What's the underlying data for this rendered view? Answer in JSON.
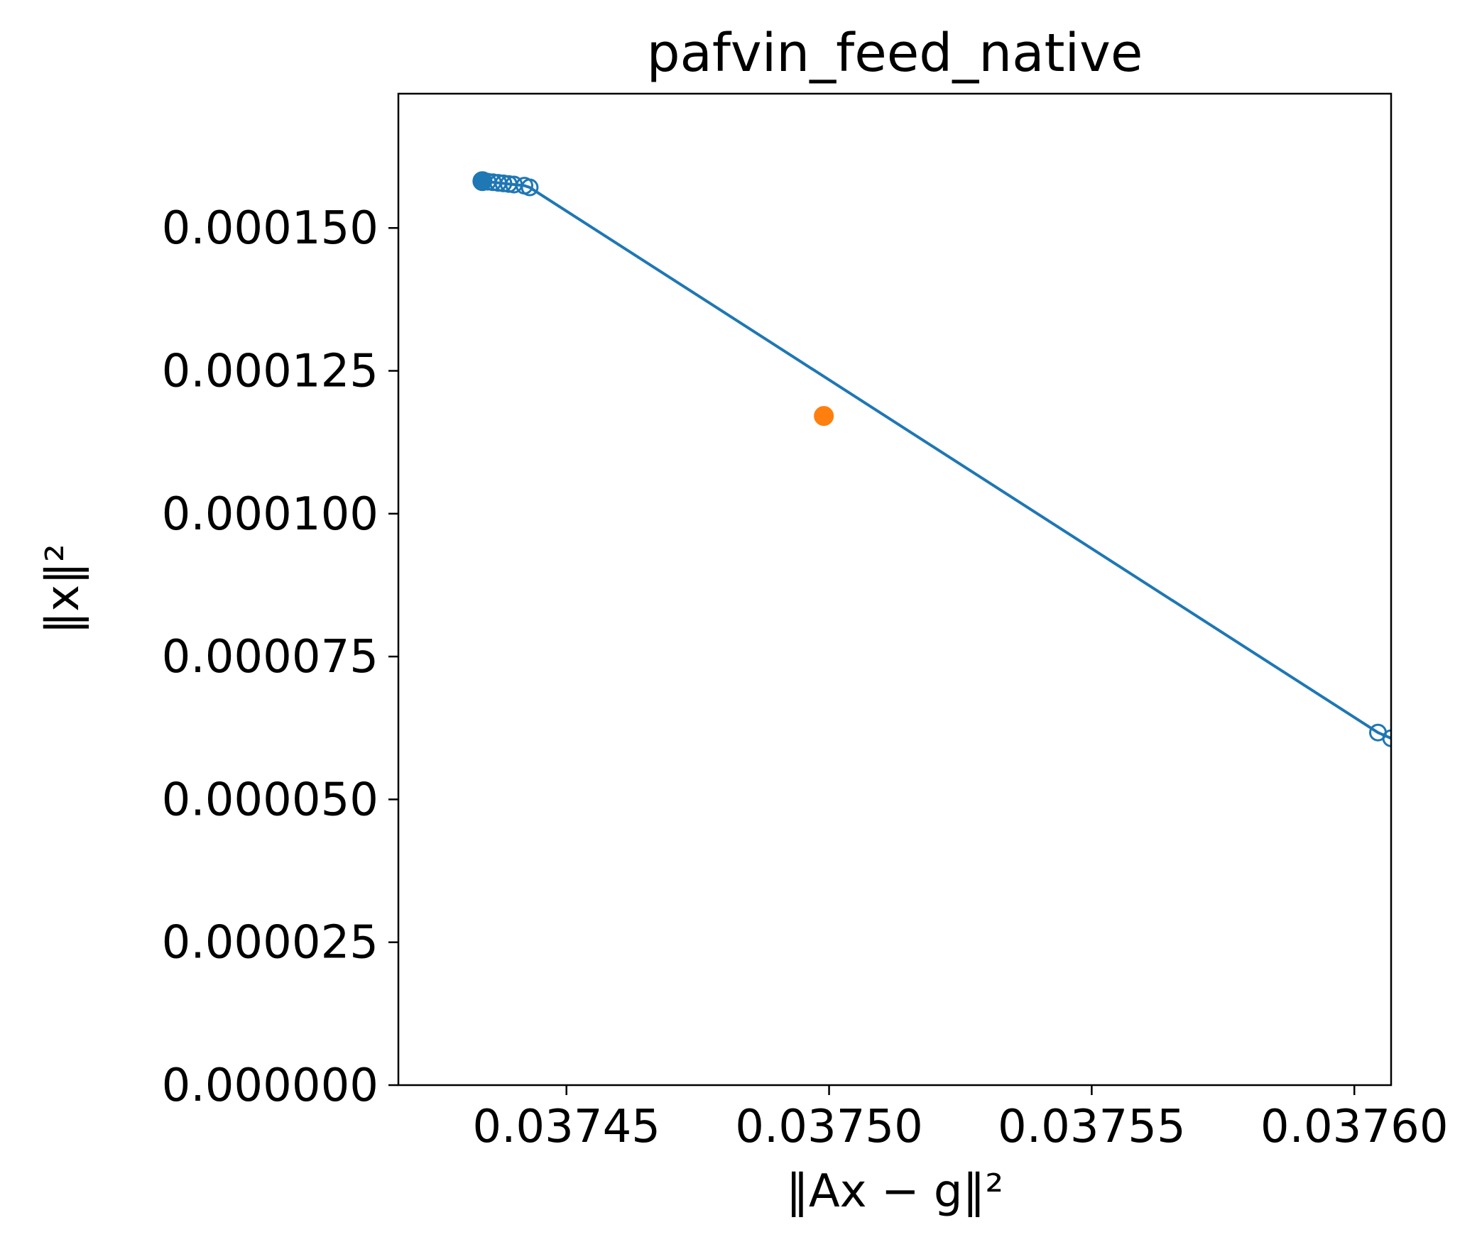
{
  "chart_data": {
    "type": "line",
    "title": "pafvin_feed_native",
    "xlabel": "‖Ax − g‖²",
    "ylabel": "‖x‖²",
    "xlim": [
      0.037418,
      0.037607
    ],
    "ylim": [
      0.0,
      0.0001735
    ],
    "xticks": [
      {
        "value": 0.03745,
        "label": "0.03745"
      },
      {
        "value": 0.0375,
        "label": "0.03750"
      },
      {
        "value": 0.03755,
        "label": "0.03755"
      },
      {
        "value": 0.0376,
        "label": "0.03760"
      }
    ],
    "yticks": [
      {
        "value": 0.0,
        "label": "0.000000"
      },
      {
        "value": 2.5e-05,
        "label": "0.000025"
      },
      {
        "value": 5e-05,
        "label": "0.000050"
      },
      {
        "value": 7.5e-05,
        "label": "0.000075"
      },
      {
        "value": 0.0001,
        "label": "0.000100"
      },
      {
        "value": 0.000125,
        "label": "0.000125"
      },
      {
        "value": 0.00015,
        "label": "0.000150"
      }
    ],
    "grid": false,
    "series": [
      {
        "color": "#1f77b4",
        "marker": "open-circle",
        "x": [
          0.037434,
          0.037435,
          0.037436,
          0.037437,
          0.037438,
          0.037439,
          0.03744,
          0.037442,
          0.037443,
          0.0376045,
          0.037607
        ],
        "y": [
          0.0001582,
          0.0001581,
          0.000158,
          0.0001579,
          0.0001578,
          0.0001577,
          0.0001576,
          0.0001574,
          0.0001571,
          6.17e-05,
          6.07e-05
        ]
      }
    ],
    "highlight_points": [
      {
        "color": "#ff7f0e",
        "marker": "filled-circle",
        "x": 0.037499,
        "y": 0.0001171
      },
      {
        "color": "#1f77b4",
        "marker": "filled-circle",
        "x": 0.037434,
        "y": 0.0001582
      }
    ]
  }
}
